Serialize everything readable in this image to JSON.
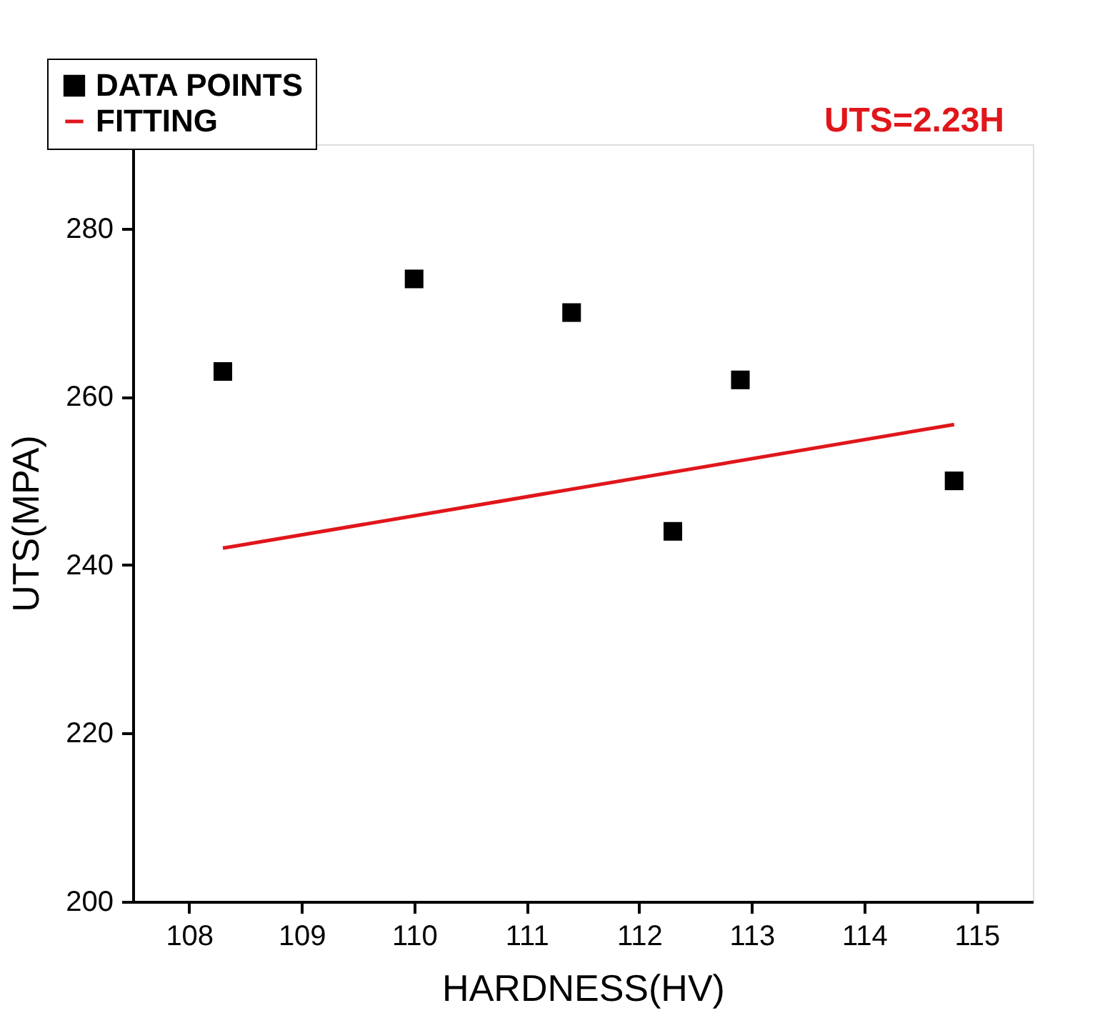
{
  "chart_data": {
    "type": "scatter",
    "xlabel": "HARDNESS(HV)",
    "ylabel": "UTS(MPA)",
    "series": [
      {
        "name": "DATA POINTS",
        "marker": "square",
        "color": "#000000",
        "x": [
          108.3,
          110.0,
          111.4,
          112.3,
          112.9,
          114.8
        ],
        "values": [
          263,
          274,
          270,
          244,
          262,
          250
        ]
      },
      {
        "name": "FITTING",
        "type": "line",
        "marker": "none",
        "line_style": "solid",
        "color": "#e0161b",
        "x": [
          108.3,
          114.8
        ],
        "values": [
          242.0,
          256.7
        ]
      }
    ],
    "xlim": [
      107.5,
      115.5
    ],
    "xticks": [
      108,
      109,
      110,
      111,
      112,
      113,
      114,
      115
    ],
    "ylim": [
      200,
      290
    ],
    "yticks": [
      200,
      220,
      240,
      260,
      280
    ],
    "annotations": [
      "UTS=2.23H"
    ],
    "legend": "top left",
    "grid": false
  }
}
